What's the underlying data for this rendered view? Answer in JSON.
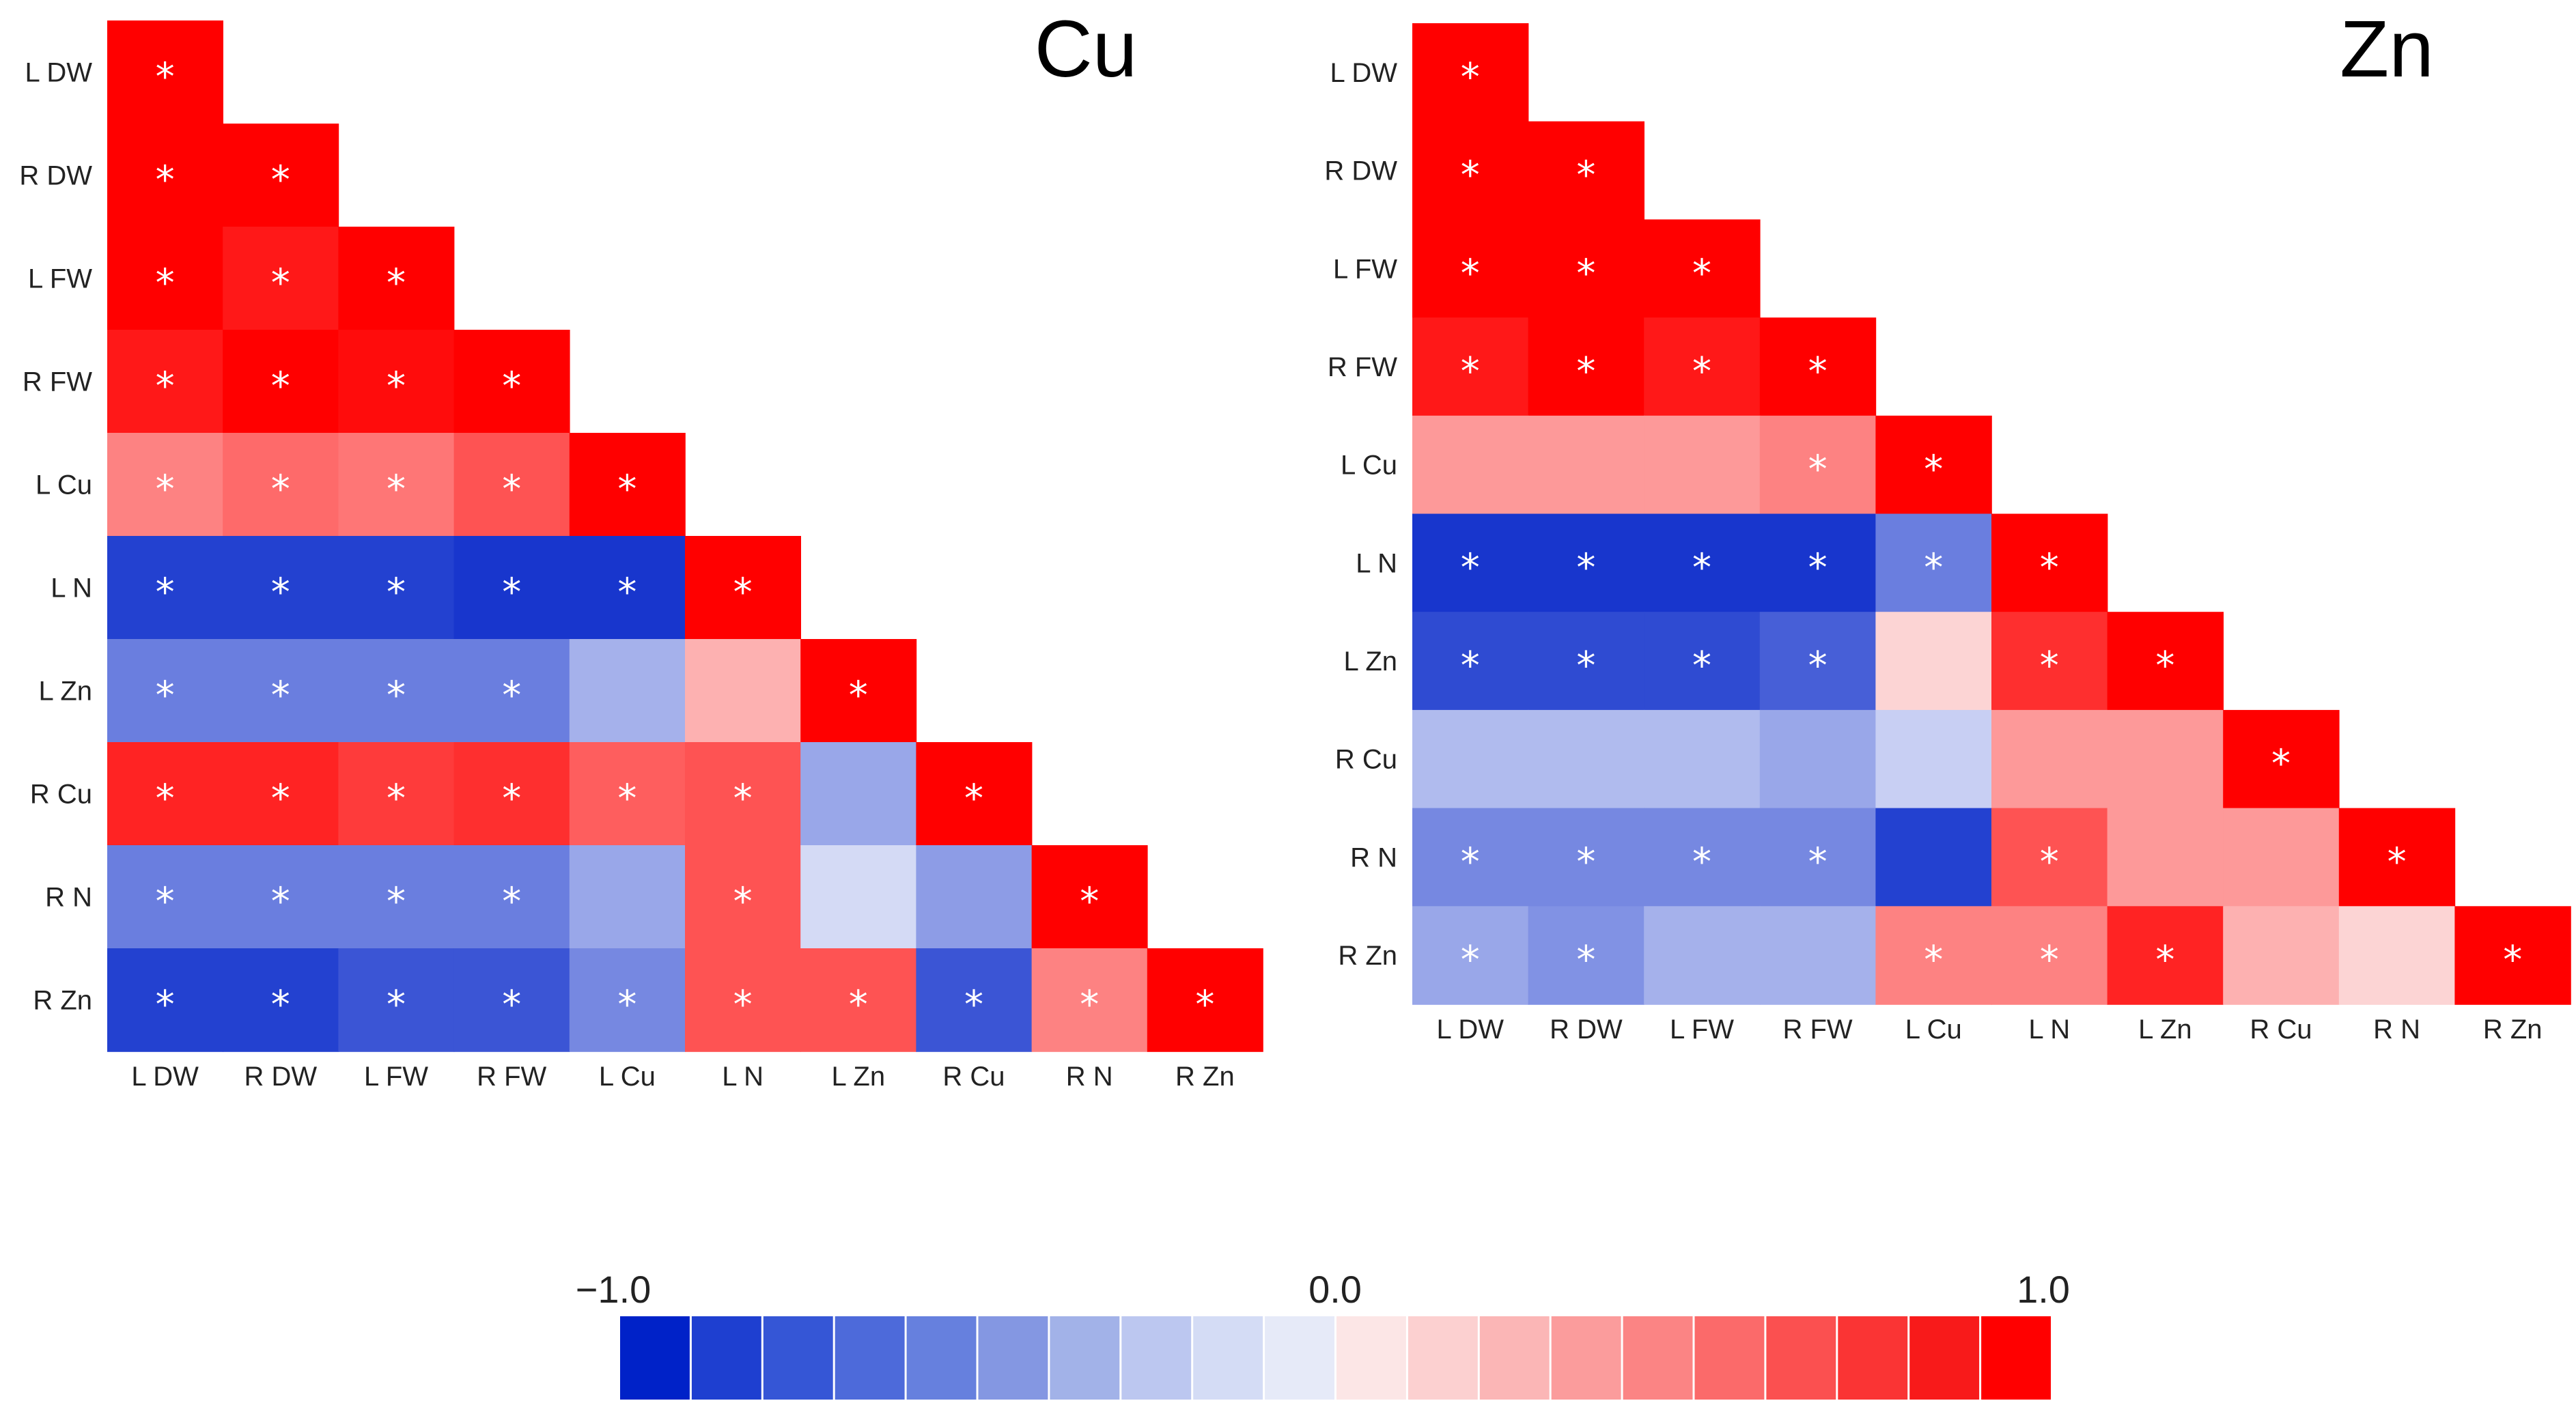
{
  "figure": {
    "colorbar": {
      "min_label": "−1.0",
      "mid_label": "0.0",
      "max_label": "1.0",
      "colors": [
        "#0022c8",
        "#1e3fd0",
        "#3556d6",
        "#4d6ada",
        "#6680de",
        "#8497e2",
        "#a2b2e8",
        "#bcc7f0",
        "#d4dcf5",
        "#e6eaf8",
        "#fce6e6",
        "#fcd0d0",
        "#fbb6b6",
        "#fb9c9c",
        "#fb8484",
        "#fb6a6a",
        "#fb5050",
        "#fa3434",
        "#f81a1a",
        "#ff0000"
      ]
    }
  },
  "chart_data": [
    {
      "type": "heatmap",
      "title": "Cu",
      "labels": [
        "L DW",
        "R DW",
        "L FW",
        "R FW",
        "L Cu",
        "L N",
        "L Zn",
        "R Cu",
        "R N",
        "R Zn"
      ],
      "value_range": [
        -1.0,
        1.0
      ],
      "significance_marker": "*",
      "matrix": [
        [
          1.0
        ],
        [
          1.0,
          1.0
        ],
        [
          1.0,
          0.9,
          1.0
        ],
        [
          0.9,
          1.0,
          0.95,
          1.0
        ],
        [
          0.45,
          0.55,
          0.5,
          0.65,
          1.0
        ],
        [
          -0.85,
          -0.85,
          -0.85,
          -0.9,
          -0.9,
          1.0
        ],
        [
          -0.55,
          -0.55,
          -0.55,
          -0.55,
          -0.3,
          0.25,
          1.0
        ],
        [
          0.85,
          0.85,
          0.75,
          0.8,
          0.6,
          0.65,
          -0.35,
          1.0
        ],
        [
          -0.55,
          -0.55,
          -0.55,
          -0.55,
          -0.35,
          0.65,
          -0.1,
          -0.4,
          1.0
        ],
        [
          -0.85,
          -0.85,
          -0.75,
          -0.75,
          -0.5,
          0.65,
          0.65,
          -0.75,
          0.45,
          1.0
        ]
      ],
      "significant": [
        [
          1
        ],
        [
          1,
          1
        ],
        [
          1,
          1,
          1
        ],
        [
          1,
          1,
          1,
          1
        ],
        [
          1,
          1,
          1,
          1,
          1
        ],
        [
          1,
          1,
          1,
          1,
          1,
          1
        ],
        [
          1,
          1,
          1,
          1,
          0,
          0,
          1
        ],
        [
          1,
          1,
          1,
          1,
          1,
          1,
          0,
          1
        ],
        [
          1,
          1,
          1,
          1,
          0,
          1,
          0,
          0,
          1
        ],
        [
          1,
          1,
          1,
          1,
          1,
          1,
          1,
          1,
          1,
          1
        ]
      ]
    },
    {
      "type": "heatmap",
      "title": "Zn",
      "labels": [
        "L DW",
        "R DW",
        "L FW",
        "R FW",
        "L Cu",
        "L N",
        "L Zn",
        "R Cu",
        "R N",
        "R Zn"
      ],
      "value_range": [
        -1.0,
        1.0
      ],
      "significance_marker": "*",
      "matrix": [
        [
          1.0
        ],
        [
          1.0,
          1.0
        ],
        [
          1.0,
          1.0,
          1.0
        ],
        [
          0.9,
          1.0,
          0.9,
          1.0
        ],
        [
          0.35,
          0.35,
          0.35,
          0.45,
          1.0
        ],
        [
          -0.9,
          -0.9,
          -0.9,
          -0.9,
          -0.55,
          1.0
        ],
        [
          -0.8,
          -0.8,
          -0.8,
          -0.7,
          0.1,
          0.8,
          1.0
        ],
        [
          -0.25,
          -0.25,
          -0.25,
          -0.35,
          -0.15,
          0.35,
          0.35,
          1.0
        ],
        [
          -0.5,
          -0.5,
          -0.5,
          -0.5,
          -0.85,
          0.65,
          0.35,
          0.35,
          1.0
        ],
        [
          -0.35,
          -0.45,
          -0.3,
          -0.3,
          0.45,
          0.45,
          0.85,
          0.25,
          0.1,
          1.0
        ]
      ],
      "significant": [
        [
          1
        ],
        [
          1,
          1
        ],
        [
          1,
          1,
          1
        ],
        [
          1,
          1,
          1,
          1
        ],
        [
          0,
          0,
          0,
          1,
          1
        ],
        [
          1,
          1,
          1,
          1,
          1,
          1
        ],
        [
          1,
          1,
          1,
          1,
          0,
          1,
          1
        ],
        [
          0,
          0,
          0,
          0,
          0,
          0,
          0,
          1
        ],
        [
          1,
          1,
          1,
          1,
          0,
          1,
          0,
          0,
          1
        ],
        [
          1,
          1,
          0,
          0,
          1,
          1,
          1,
          0,
          0,
          1
        ]
      ]
    }
  ]
}
